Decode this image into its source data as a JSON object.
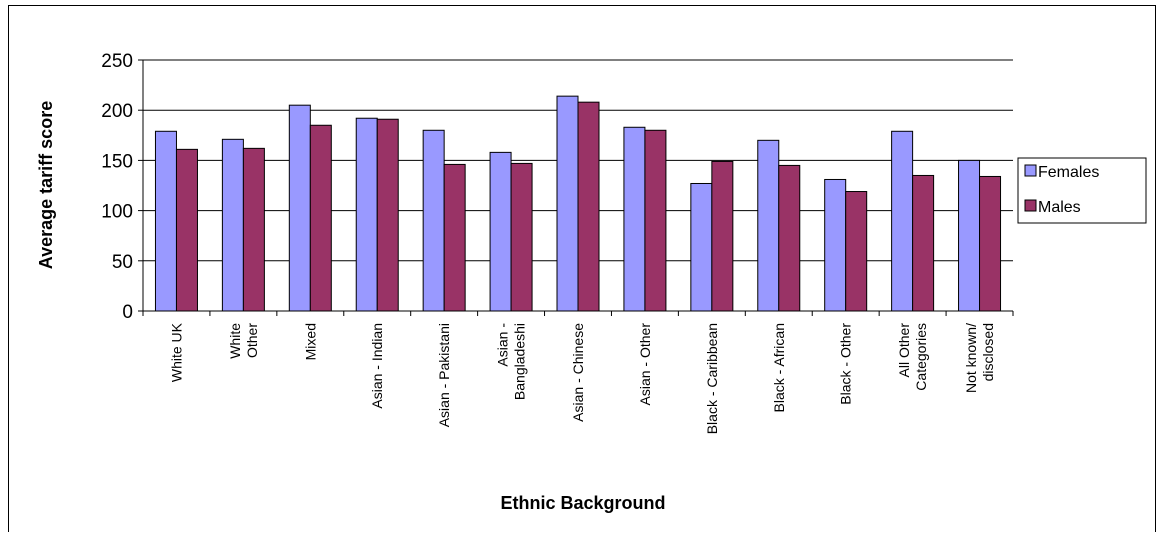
{
  "chart_data": {
    "type": "bar",
    "title": "",
    "xlabel": "Ethnic Background",
    "ylabel": "Average tariff score",
    "ylim": [
      0,
      250
    ],
    "yticks": [
      0,
      50,
      100,
      150,
      200,
      250
    ],
    "grid": true,
    "legend_position": "right",
    "categories": [
      [
        "White UK"
      ],
      [
        "White",
        "Other"
      ],
      [
        "Mixed"
      ],
      [
        "Asian - Indian"
      ],
      [
        "Asian - Pakistani"
      ],
      [
        "Asian -",
        "Bangladeshi"
      ],
      [
        "Asian - Chinese"
      ],
      [
        "Asian - Other"
      ],
      [
        "Black - Caribbean"
      ],
      [
        "Black - African"
      ],
      [
        "Black - Other"
      ],
      [
        "All Other",
        "Categories"
      ],
      [
        "Not known/",
        "disclosed"
      ]
    ],
    "series": [
      {
        "name": "Females",
        "color": "#9999ff",
        "values": [
          179,
          171,
          205,
          192,
          180,
          158,
          214,
          183,
          127,
          170,
          131,
          179,
          150
        ]
      },
      {
        "name": "Males",
        "color": "#993366",
        "values": [
          161,
          162,
          185,
          191,
          146,
          147,
          208,
          180,
          149,
          145,
          119,
          135,
          134
        ]
      }
    ]
  }
}
